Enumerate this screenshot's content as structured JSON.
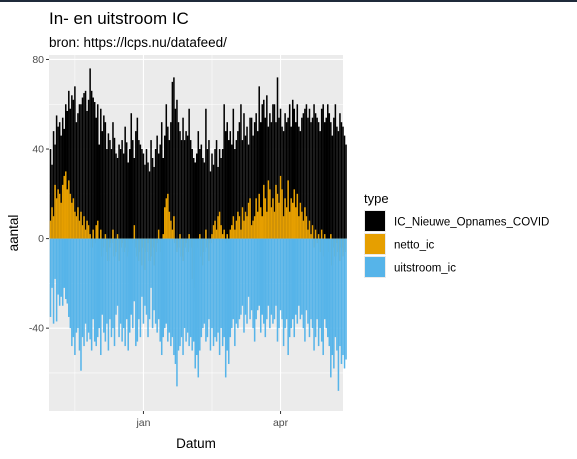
{
  "chart_data": {
    "type": "bar",
    "title": "In- en uitstroom IC",
    "subtitle": "bron: https://lcps.nu/datafeed/",
    "xlabel": "Datum",
    "ylabel": "aantal",
    "x_range": [
      "2020-10-31",
      "2021-05-12"
    ],
    "ylim": [
      -77,
      82
    ],
    "y_ticks": [
      -40,
      0,
      40,
      80
    ],
    "x_ticks": [
      {
        "date": "2021-01-01",
        "label": "jan"
      },
      {
        "date": "2021-04-01",
        "label": "apr"
      }
    ],
    "grid": true,
    "legend": {
      "title": "type",
      "position": "right",
      "entries": [
        {
          "label": "IC_Nieuwe_Opnames_COVID",
          "color": "#000000"
        },
        {
          "label": "netto_ic",
          "color": "#E69F00"
        },
        {
          "label": "uitstroom_ic",
          "color": "#56B4E9"
        }
      ]
    },
    "x_start": "2020-11-01",
    "series": [
      {
        "name": "IC_Nieuwe_Opnames_COVID",
        "color": "#000000",
        "values": [
          40,
          33,
          48,
          42,
          55,
          50,
          52,
          46,
          54,
          49,
          60,
          57,
          66,
          58,
          64,
          62,
          68,
          52,
          56,
          60,
          60,
          63,
          65,
          66,
          57,
          62,
          76,
          66,
          63,
          61,
          54,
          60,
          42,
          58,
          48,
          55,
          52,
          40,
          47,
          44,
          40,
          52,
          45,
          38,
          36,
          42,
          40,
          44,
          38,
          50,
          43,
          34,
          40,
          56,
          44,
          36,
          48,
          54,
          44,
          42,
          40,
          38,
          33,
          40,
          34,
          30,
          44,
          36,
          32,
          40,
          46,
          38,
          42,
          52,
          36,
          46,
          60,
          50,
          44,
          52,
          70,
          72,
          58,
          62,
          52,
          48,
          44,
          54,
          44,
          48,
          46,
          58,
          44,
          40,
          36,
          34,
          38,
          48,
          40,
          42,
          36,
          34,
          58,
          40,
          44,
          30,
          38,
          33,
          40,
          44,
          32,
          40,
          36,
          40,
          60,
          48,
          52,
          44,
          48,
          42,
          58,
          40,
          44,
          48,
          52,
          60,
          44,
          56,
          46,
          50,
          42,
          54,
          54,
          46,
          52,
          56,
          48,
          68,
          52,
          60,
          62,
          54,
          64,
          50,
          56,
          52,
          60,
          60,
          52,
          72,
          54,
          58,
          50,
          48,
          56,
          52,
          54,
          60,
          50,
          62,
          58,
          52,
          60,
          50,
          48,
          54,
          56,
          58,
          60,
          54,
          58,
          52,
          54,
          60,
          56,
          54,
          52,
          48,
          58,
          60,
          52,
          54,
          60,
          56,
          52,
          46,
          54,
          60,
          50,
          48,
          56,
          52,
          50,
          46,
          42
        ]
      },
      {
        "name": "netto_ic",
        "color": "#E69F00",
        "values": [
          8,
          14,
          10,
          24,
          18,
          22,
          20,
          16,
          24,
          28,
          30,
          22,
          26,
          20,
          16,
          18,
          12,
          10,
          14,
          8,
          12,
          6,
          10,
          4,
          8,
          6,
          2,
          -4,
          4,
          -2,
          6,
          8,
          -6,
          4,
          -8,
          -4,
          2,
          -6,
          -10,
          -4,
          -2,
          4,
          -8,
          -6,
          2,
          -10,
          -4,
          -2,
          -6,
          -4,
          -8,
          -6,
          -12,
          -4,
          -2,
          6,
          -4,
          -8,
          -10,
          -6,
          -12,
          -4,
          -14,
          -6,
          -2,
          -10,
          -8,
          -4,
          -12,
          -6,
          -2,
          4,
          -6,
          -10,
          2,
          14,
          18,
          20,
          12,
          8,
          4,
          10,
          -2,
          -6,
          -4,
          2,
          -8,
          -10,
          -4,
          -2,
          -6,
          2,
          -4,
          -18,
          -22,
          -28,
          -6,
          -4,
          2,
          -8,
          -12,
          -6,
          4,
          -4,
          -10,
          -2,
          2,
          6,
          8,
          4,
          10,
          12,
          6,
          2,
          4,
          -2,
          2,
          -4,
          4,
          6,
          10,
          4,
          8,
          12,
          10,
          4,
          14,
          8,
          12,
          10,
          16,
          18,
          6,
          8,
          10,
          18,
          12,
          20,
          14,
          10,
          24,
          18,
          12,
          26,
          22,
          14,
          18,
          12,
          24,
          20,
          16,
          28,
          22,
          10,
          18,
          14,
          26,
          12,
          18,
          16,
          22,
          14,
          20,
          10,
          16,
          12,
          8,
          14,
          10,
          4,
          8,
          2,
          6,
          -4,
          4,
          -2,
          2,
          -6,
          4,
          -8,
          2,
          -4,
          -10,
          -6,
          2,
          -12,
          -4,
          -8,
          -2,
          -6,
          -10,
          -4,
          -8,
          -6
        ]
      },
      {
        "name": "uitstroom_ic",
        "color": "#56B4E9",
        "values": [
          -35,
          -22,
          -38,
          -18,
          -37,
          -25,
          -30,
          -26,
          -30,
          -22,
          -27,
          -29,
          -35,
          -40,
          -48,
          -44,
          -52,
          -42,
          -40,
          -50,
          -59,
          -44,
          -48,
          -38,
          -46,
          -42,
          -45,
          -50,
          -36,
          -46,
          -48,
          -44,
          -40,
          -52,
          -34,
          -42,
          -46,
          -38,
          -50,
          -36,
          -44,
          -40,
          -48,
          -34,
          -30,
          -44,
          -38,
          -46,
          -40,
          -48,
          -36,
          -50,
          -42,
          -34,
          -40,
          -28,
          -48,
          -46,
          -36,
          -44,
          -26,
          -38,
          -30,
          -34,
          -44,
          -36,
          -22,
          -40,
          -32,
          -38,
          -42,
          -36,
          -46,
          -52,
          -44,
          -40,
          -38,
          -46,
          -42,
          -48,
          -44,
          -52,
          -56,
          -66,
          -50,
          -48,
          -44,
          -52,
          -40,
          -46,
          -42,
          -48,
          -44,
          -50,
          -46,
          -58,
          -52,
          -62,
          -50,
          -44,
          -40,
          -38,
          -46,
          -44,
          -36,
          -50,
          -40,
          -48,
          -44,
          -46,
          -42,
          -52,
          -40,
          -48,
          -44,
          -62,
          -50,
          -56,
          -44,
          -40,
          -36,
          -48,
          -38,
          -40,
          -36,
          -34,
          -30,
          -42,
          -34,
          -38,
          -26,
          -36,
          -32,
          -40,
          -46,
          -36,
          -32,
          -30,
          -42,
          -34,
          -38,
          -44,
          -36,
          -30,
          -40,
          -34,
          -38,
          -36,
          -30,
          -46,
          -40,
          -32,
          -36,
          -48,
          -40,
          -36,
          -52,
          -44,
          -40,
          -36,
          -44,
          -34,
          -38,
          -30,
          -36,
          -34,
          -40,
          -46,
          -32,
          -38,
          -44,
          -36,
          -40,
          -50,
          -44,
          -36,
          -48,
          -40,
          -46,
          -52,
          -36,
          -40,
          -44,
          -48,
          -62,
          -52,
          -58,
          -44,
          -50,
          -68,
          -48,
          -56,
          -52,
          -58,
          -54
        ]
      }
    ]
  }
}
